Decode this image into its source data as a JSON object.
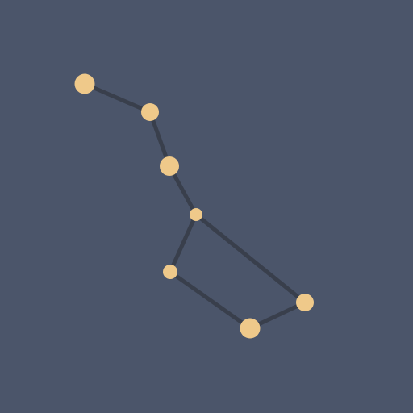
{
  "icon": "big-dipper-constellation-icon",
  "colors": {
    "background": "#4b556a",
    "line": "#393f4c",
    "star": "#efc98a"
  },
  "constellation": {
    "star_count": 7
  }
}
